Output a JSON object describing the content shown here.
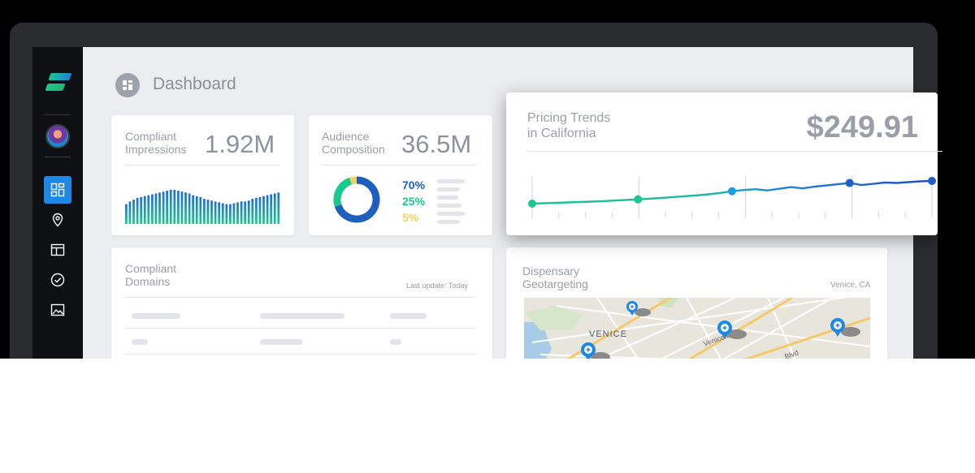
{
  "header": {
    "title": "Dashboard",
    "icon": "dashboard-grid-icon"
  },
  "sidebar": {
    "items": [
      {
        "name": "dashboard",
        "icon": "dashboard-icon",
        "active": true
      },
      {
        "name": "location",
        "icon": "location-pin-icon",
        "active": false
      },
      {
        "name": "layout",
        "icon": "layout-icon",
        "active": false
      },
      {
        "name": "compliance",
        "icon": "check-circle-icon",
        "active": false
      },
      {
        "name": "gallery",
        "icon": "image-icon",
        "active": false
      }
    ]
  },
  "cards": {
    "impressions": {
      "label_line1": "Compliant",
      "label_line2": "Impressions",
      "value": "1.92M"
    },
    "audience": {
      "label_line1": "Audience",
      "label_line2": "Composition",
      "value": "36.5M",
      "legend": [
        {
          "pct": "70%",
          "color": "#1e5fbf"
        },
        {
          "pct": "25%",
          "color": "#1ac98e"
        },
        {
          "pct": "5%",
          "color": "#f2d162"
        }
      ]
    },
    "pricing": {
      "label_line1": "Pricing Trends",
      "label_line2": "in California",
      "value": "$249.91"
    },
    "domains": {
      "label_line1": "Compliant",
      "label_line2": "Domains",
      "note": "Last update: Today"
    },
    "geo": {
      "label_line1": "Dispensary",
      "label_line2": "Geotargeting",
      "location": "Venice, CA",
      "map_label": "VENICE",
      "street1": "Venice Blvd",
      "street2": "Blvd"
    }
  },
  "chart_data": [
    {
      "type": "bar",
      "values": [
        22,
        25,
        27,
        29,
        30,
        31,
        32,
        33,
        34,
        35,
        36,
        37,
        38,
        38,
        37,
        36,
        35,
        34,
        32,
        31,
        30,
        28,
        27,
        26,
        25,
        24,
        23,
        22,
        22,
        23,
        24,
        25,
        25,
        26,
        28,
        29,
        30,
        31,
        32,
        33,
        34,
        35
      ]
    },
    {
      "type": "pie",
      "values": [
        70,
        25,
        5
      ],
      "colors": [
        "#1e5fbf",
        "#1ac98e",
        "#f2d162"
      ]
    },
    {
      "type": "line",
      "values": [
        0,
        2,
        4,
        6,
        8,
        10,
        12,
        15,
        18,
        21,
        24,
        28,
        32,
        36,
        40,
        45,
        52,
        60,
        66,
        70,
        64,
        72,
        80,
        74,
        82,
        88,
        94,
        100,
        90,
        96,
        102,
        100,
        104,
        108,
        110
      ],
      "markers": [
        0,
        9,
        17,
        27,
        34
      ]
    }
  ]
}
